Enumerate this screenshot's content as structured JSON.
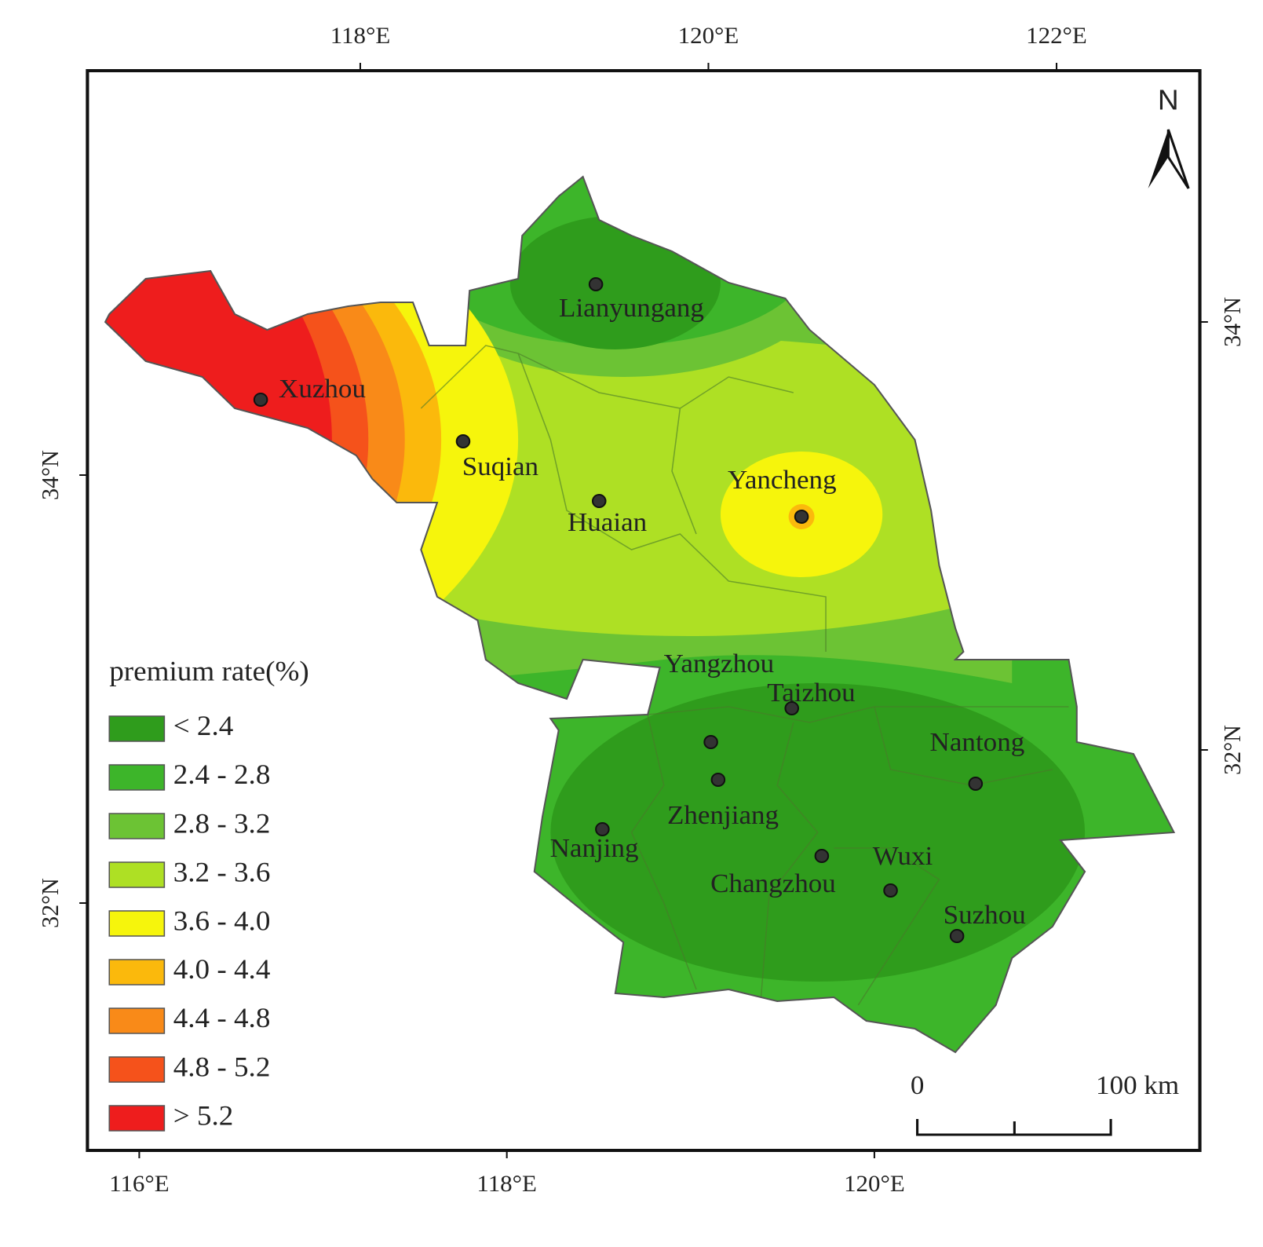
{
  "map": {
    "graticule": {
      "top": [
        "118°E",
        "120°E",
        "122°E"
      ],
      "bottom": [
        "116°E",
        "118°E",
        "120°E"
      ],
      "left": [
        "34°N",
        "32°N"
      ],
      "right": [
        "34°N",
        "32°N"
      ]
    },
    "north": "N",
    "cities": [
      "Lianyungang",
      "Xuzhou",
      "Suqian",
      "Huaian",
      "Yancheng",
      "Yangzhou",
      "Taizhou",
      "Nantong",
      "Zhenjiang",
      "Nanjing",
      "Changzhou",
      "Wuxi",
      "Suzhou"
    ],
    "legend": {
      "title": "premium rate(%)",
      "items": [
        {
          "label": "< 2.4",
          "color": "#2f9c1c"
        },
        {
          "label": "2.4 - 2.8",
          "color": "#3db52a"
        },
        {
          "label": "2.8 - 3.2",
          "color": "#6cc334"
        },
        {
          "label": "3.2 - 3.6",
          "color": "#aee024"
        },
        {
          "label": "3.6 - 4.0",
          "color": "#f6f50c"
        },
        {
          "label": "4.0 - 4.4",
          "color": "#fbb90c"
        },
        {
          "label": "4.4 - 4.8",
          "color": "#f98a18"
        },
        {
          "label": "4.8 - 5.2",
          "color": "#f5521b"
        },
        {
          "label": "> 5.2",
          "color": "#ee1d1d"
        }
      ]
    },
    "scale_bar": {
      "start": "0",
      "end": "100 km"
    }
  }
}
